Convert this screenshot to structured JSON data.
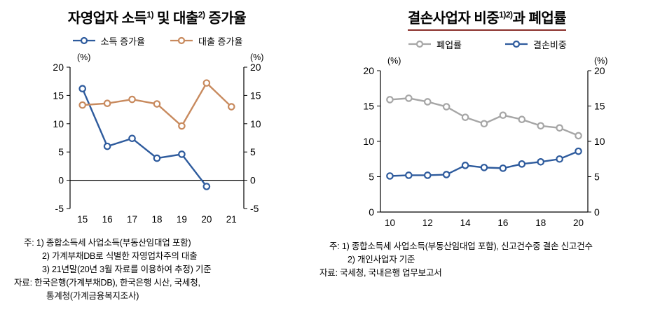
{
  "chart_data": [
    {
      "type": "line",
      "title_text": "자영업자 소득1) 및 대출2) 증가율",
      "title": {
        "p1": "자영업자 소득",
        "s1": "1)",
        "p2": " 및 대출",
        "s2": "2)",
        "p3": " 증가율"
      },
      "categories": [
        "15",
        "16",
        "17",
        "18",
        "19",
        "20",
        "21"
      ],
      "series": [
        {
          "name": "소득 증가율",
          "color": "#2e5b9d",
          "values": [
            16.2,
            6.0,
            7.4,
            3.9,
            4.6,
            -1.1,
            null
          ]
        },
        {
          "name": "대출 증가율",
          "color": "#c88a5e",
          "values": [
            13.3,
            13.6,
            14.3,
            13.5,
            9.6,
            17.2,
            13.0
          ]
        }
      ],
      "ylim": [
        -5,
        20
      ],
      "yticks": [
        -5,
        0,
        5,
        10,
        15,
        20
      ],
      "unit_left": "(%)",
      "unit_right": "(%)",
      "x_label_every": 1,
      "grid": false,
      "legend_position": "top",
      "notes": [
        "주: 1) 종합소득세 사업소득(부동산임대업 포함)",
        "2) 가계부채DB로 식별한 자영업차주의 대출",
        "3) 21년말(20년 3월 자료를 이용하여 추정) 기준",
        "자료: 한국은행(가계부채DB), 한국은행 시산, 국세청,",
        "통계청(가계금융복지조사)"
      ]
    },
    {
      "type": "line",
      "title_text": "결손사업자 비중1)2)과 폐업률",
      "title": {
        "p1": "결손사업자 비중",
        "s1": "1)2)",
        "p2": "과 폐업률"
      },
      "categories": [
        "10",
        "11",
        "12",
        "13",
        "14",
        "15",
        "16",
        "17",
        "18",
        "19",
        "20"
      ],
      "series": [
        {
          "name": "폐업률",
          "color": "#a6a6a6",
          "values": [
            15.9,
            16.1,
            15.6,
            14.9,
            13.4,
            12.5,
            13.7,
            13.1,
            12.2,
            11.9,
            10.8
          ]
        },
        {
          "name": "결손비중",
          "color": "#2e5b9d",
          "values": [
            5.1,
            5.2,
            5.2,
            5.3,
            6.6,
            6.3,
            6.2,
            6.8,
            7.1,
            7.5,
            8.6
          ]
        }
      ],
      "ylim": [
        0,
        20
      ],
      "yticks": [
        0,
        5,
        10,
        15,
        20
      ],
      "unit_left": "(%)",
      "unit_right": "(%)",
      "x_label_every": 2,
      "grid": false,
      "legend_position": "top",
      "notes": [
        "주: 1) 종합소득세 사업소득(부동산임대업 포함), 신고건수중 결손 신고건수",
        "2) 개인사업자 기준",
        "자료: 국세청, 국내은행 업무보고서"
      ]
    }
  ],
  "colors": {
    "axis": "#000000",
    "title_underline": "#8a2f2b",
    "income_growth_blue": "#2e5b9d",
    "loan_growth_tan": "#c88a5e",
    "closure_rate_gray": "#a6a6a6",
    "loss_share_blue": "#2e5b9d"
  }
}
